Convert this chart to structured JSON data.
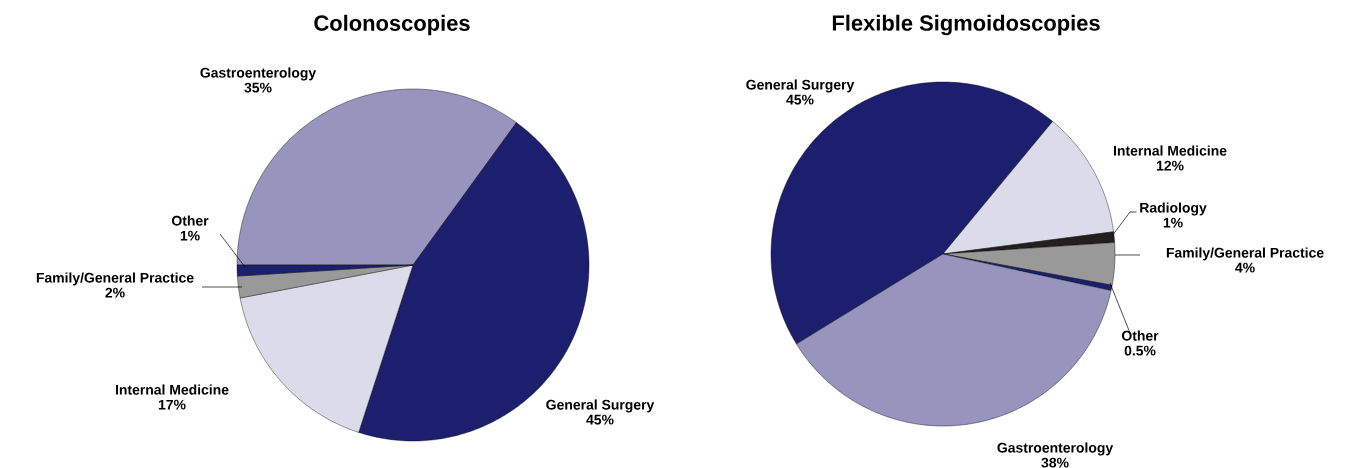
{
  "chart_data": [
    {
      "type": "pie",
      "title": "Colonoscopies",
      "categories": [
        "Gastroenterology",
        "General Surgery",
        "Internal Medicine",
        "Family/General Practice",
        "Other"
      ],
      "values": [
        35,
        45,
        17,
        2,
        1
      ],
      "value_labels": [
        "35%",
        "45%",
        "17%",
        "2%",
        "1%"
      ],
      "colors": [
        "#9795bd",
        "#1c1f6e",
        "#dcdbe9",
        "#999999",
        "#1c1f6e"
      ]
    },
    {
      "type": "pie",
      "title": "Flexible Sigmoidoscopies",
      "categories": [
        "General Surgery",
        "Internal Medicine",
        "Radiology",
        "Family/General Practice",
        "Other",
        "Gastroenterology"
      ],
      "values": [
        45,
        12,
        1,
        4,
        0.5,
        38
      ],
      "value_labels": [
        "45%",
        "12%",
        "1%",
        "4%",
        "0.5%",
        "38%"
      ],
      "colors": [
        "#1c1f6e",
        "#dcdbe9",
        "#231f20",
        "#999999",
        "#1c1f6e",
        "#9795bd"
      ]
    }
  ]
}
